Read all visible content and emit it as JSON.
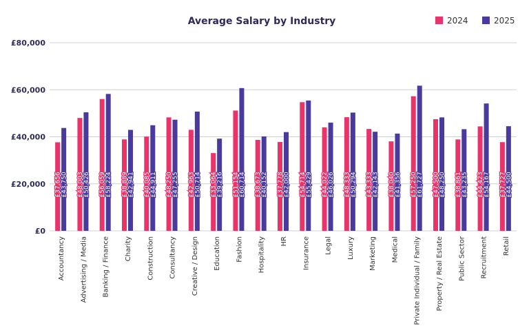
{
  "chart_data": {
    "type": "bar",
    "title": "Average Salary by Industry",
    "categories": [
      "Accountancy",
      "Advertising / Media",
      "Banking / Finance",
      "Charity",
      "Construction",
      "Consultancy",
      "Creative / Design",
      "Education",
      "Fashion",
      "Hospitality",
      "HR",
      "Insurance",
      "Legal",
      "Luxury",
      "Marketing",
      "Medical",
      "Private Individual / Family",
      "Property / Real Estate",
      "Public Sector",
      "Recruitment",
      "Retail"
    ],
    "series": [
      {
        "name": "2024",
        "color": "#e8336b",
        "values": [
          37656,
          48003,
          56059,
          38889,
          40085,
          48250,
          42963,
          33064,
          51154,
          38673,
          37778,
          54714,
          44022,
          48333,
          43333,
          38040,
          57250,
          47500,
          38861,
          44423,
          37727
        ],
        "value_labels": [
          "£37,656",
          "£48,003",
          "£56,059",
          "£38,889",
          "£40,085",
          "£48,250",
          "£42,963",
          "£33,064",
          "£51,154",
          "£38,673",
          "£37,778",
          "£54,714",
          "£44,022",
          "£48,333",
          "£43,333",
          "£38,040",
          "£57,250",
          "£47,500",
          "£38,861",
          "£44,423",
          "£37,727"
        ]
      },
      {
        "name": "2025",
        "color": "#4b3a9e",
        "values": [
          43750,
          50426,
          58224,
          42941,
          44911,
          47255,
          50714,
          39216,
          60714,
          40152,
          42000,
          55429,
          46026,
          50294,
          42143,
          41356,
          61727,
          48250,
          43235,
          54167,
          44500
        ],
        "value_labels": [
          "£43,750",
          "£50,426",
          "£58,224",
          "£42,941",
          "£44,911",
          "£47,255",
          "£50,714",
          "£39,216",
          "£60,714",
          "£40,152",
          "£42,000",
          "£55,429",
          "£46,026",
          "£50,294",
          "£42,143",
          "£41,356",
          "£61,727",
          "£48,250",
          "£43,235",
          "£54,167",
          "£44,500"
        ]
      }
    ],
    "ylim": [
      0,
      80000
    ],
    "yticks": [
      {
        "value": 0,
        "label": "£0"
      },
      {
        "value": 20000,
        "label": "£20,000"
      },
      {
        "value": 40000,
        "label": "£40,000"
      },
      {
        "value": 60000,
        "label": "£60,000"
      },
      {
        "value": 80000,
        "label": "£80,000"
      }
    ],
    "grid": true,
    "legend": "top-right"
  }
}
